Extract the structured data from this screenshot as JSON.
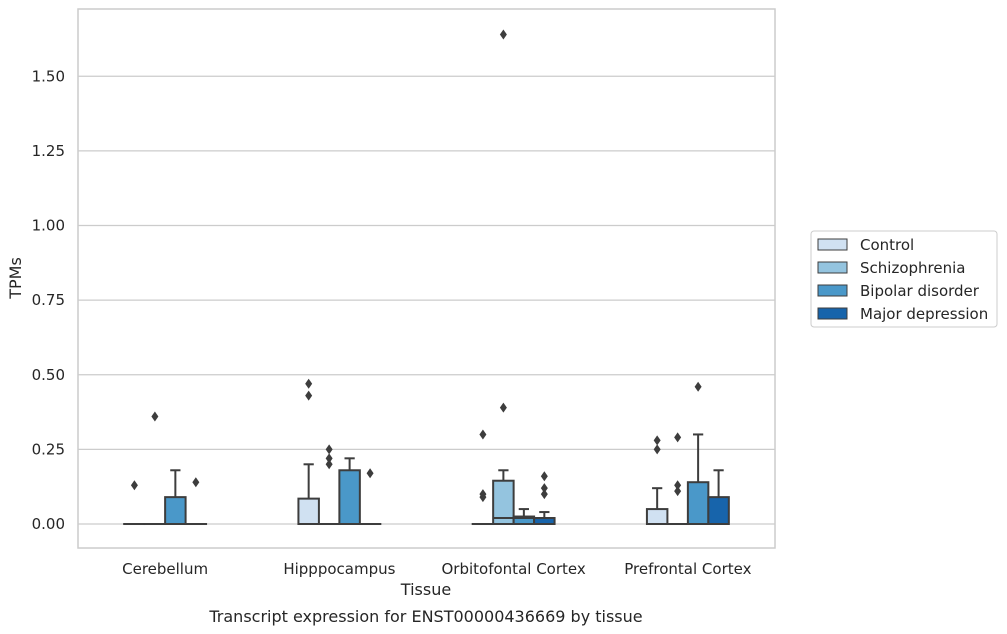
{
  "chart_data": {
    "type": "box",
    "title": "",
    "caption": "Transcript expression for ENST00000436669 by tissue",
    "xlabel": "Tissue",
    "ylabel": "TPMs",
    "ylim": [
      -0.08,
      1.74
    ],
    "yticks": [
      0.0,
      0.25,
      0.5,
      0.75,
      1.0,
      1.25,
      1.5
    ],
    "ytick_labels": [
      "0.00",
      "0.25",
      "0.50",
      "0.75",
      "1.00",
      "1.25",
      "1.50"
    ],
    "grid": "horizontal",
    "legend_position": "right",
    "categories": [
      "Cerebellum",
      "Hipppocampus",
      "Orbitofontal Cortex",
      "Prefrontal Cortex"
    ],
    "series": [
      {
        "name": "Control",
        "color": "#d0e1f2",
        "boxes": [
          {
            "q1": 0,
            "median": 0,
            "q3": 0,
            "whislo": 0,
            "whishi": 0,
            "fliers": [
              0.13
            ]
          },
          {
            "q1": 0,
            "median": 0,
            "q3": 0.085,
            "whislo": 0,
            "whishi": 0.2,
            "fliers": [
              0.43,
              0.47
            ]
          },
          {
            "q1": 0,
            "median": 0,
            "q3": 0,
            "whislo": 0,
            "whishi": 0,
            "fliers": [
              0.09,
              0.1,
              0.3
            ]
          },
          {
            "q1": 0,
            "median": 0,
            "q3": 0.05,
            "whislo": 0,
            "whishi": 0.12,
            "fliers": [
              0.25,
              0.28
            ]
          }
        ]
      },
      {
        "name": "Schizophrenia",
        "color": "#94c4df",
        "boxes": [
          {
            "q1": 0,
            "median": 0,
            "q3": 0,
            "whislo": 0,
            "whishi": 0,
            "fliers": [
              0.36
            ]
          },
          {
            "q1": 0,
            "median": 0,
            "q3": 0,
            "whislo": 0,
            "whishi": 0,
            "fliers": [
              0.2,
              0.22,
              0.25
            ]
          },
          {
            "q1": 0,
            "median": 0.02,
            "q3": 0.145,
            "whislo": 0,
            "whishi": 0.18,
            "fliers": [
              0.39,
              1.64
            ]
          },
          {
            "q1": 0,
            "median": 0,
            "q3": 0,
            "whislo": 0,
            "whishi": 0,
            "fliers": [
              0.11,
              0.13,
              0.29
            ]
          }
        ]
      },
      {
        "name": "Bipolar disorder",
        "color": "#4a98c9",
        "boxes": [
          {
            "q1": 0,
            "median": 0,
            "q3": 0.09,
            "whislo": 0,
            "whishi": 0.18,
            "fliers": []
          },
          {
            "q1": 0,
            "median": 0,
            "q3": 0.18,
            "whislo": 0,
            "whishi": 0.22,
            "fliers": []
          },
          {
            "q1": 0,
            "median": 0.02,
            "q3": 0.025,
            "whislo": 0,
            "whishi": 0.05,
            "fliers": []
          },
          {
            "q1": 0,
            "median": 0,
            "q3": 0.14,
            "whislo": 0,
            "whishi": 0.3,
            "fliers": [
              0.46
            ]
          }
        ]
      },
      {
        "name": "Major depression",
        "color": "#1764ab",
        "boxes": [
          {
            "q1": 0,
            "median": 0,
            "q3": 0,
            "whislo": 0,
            "whishi": 0,
            "fliers": [
              0.14
            ]
          },
          {
            "q1": 0,
            "median": 0,
            "q3": 0,
            "whislo": 0,
            "whishi": 0,
            "fliers": [
              0.17
            ]
          },
          {
            "q1": 0,
            "median": 0.02,
            "q3": 0.02,
            "whislo": 0,
            "whishi": 0.04,
            "fliers": [
              0.1,
              0.12,
              0.16
            ]
          },
          {
            "q1": 0,
            "median": 0,
            "q3": 0.09,
            "whislo": 0,
            "whishi": 0.18,
            "fliers": []
          }
        ]
      }
    ]
  }
}
